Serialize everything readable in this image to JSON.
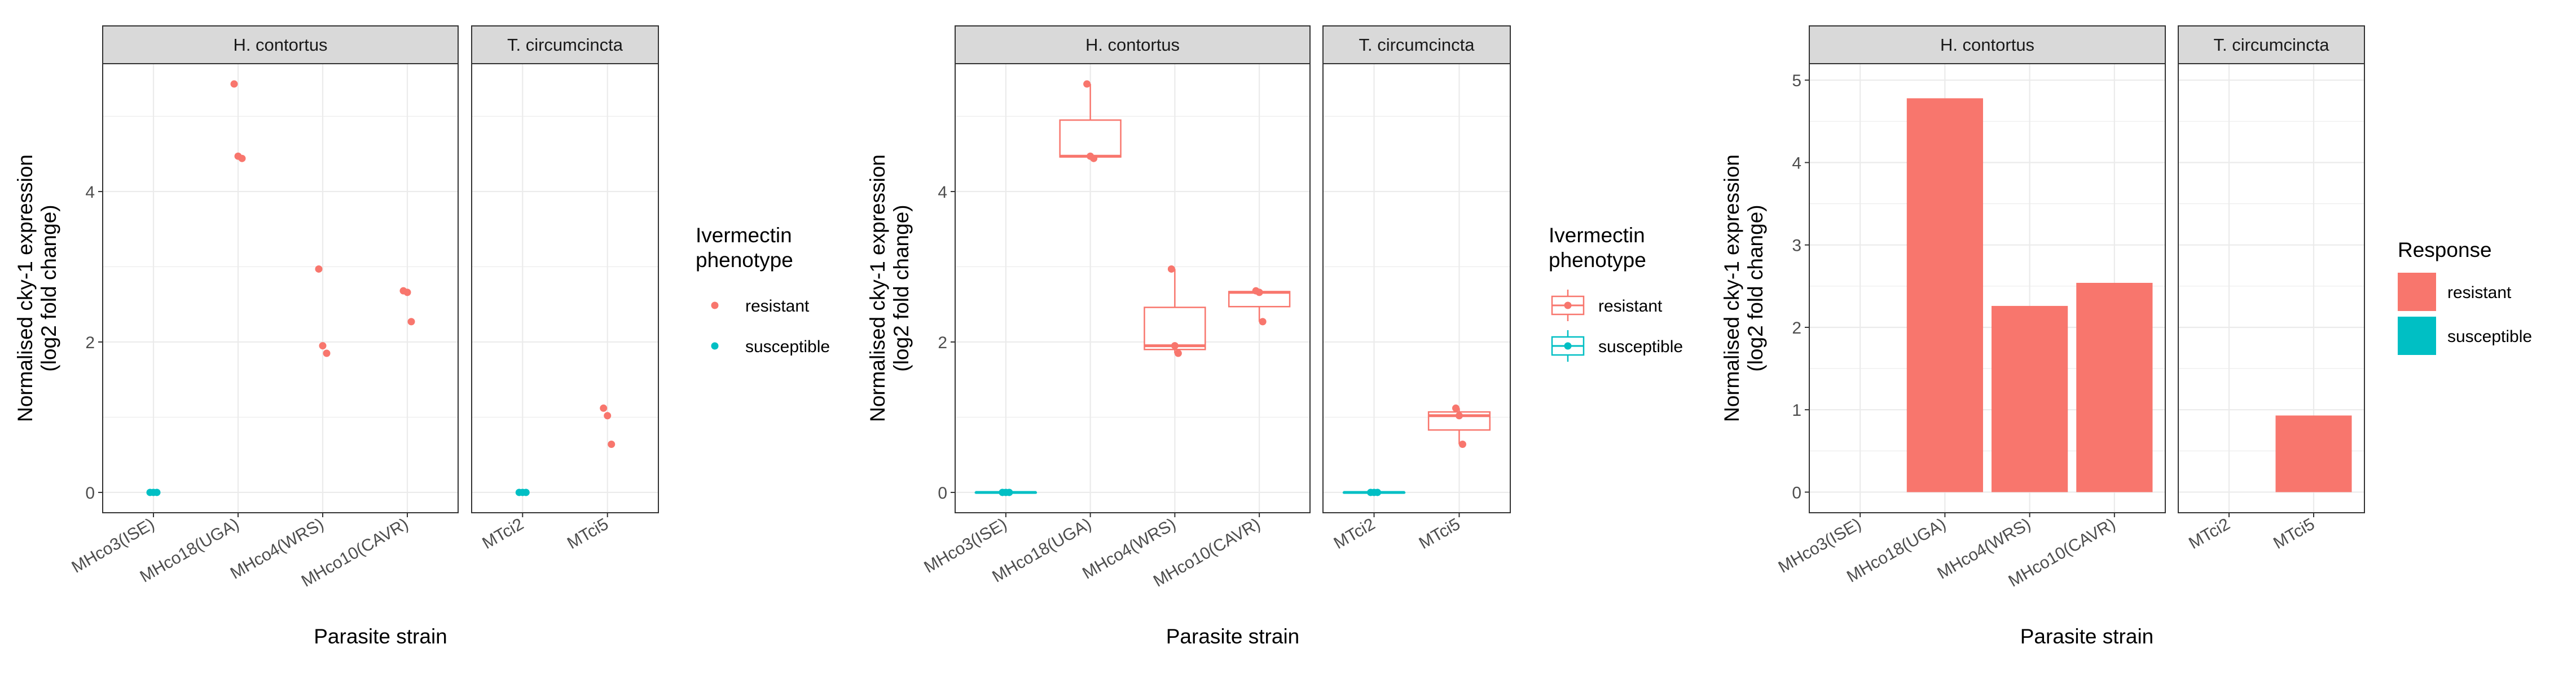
{
  "colors": {
    "resistant": "#F8766D",
    "susceptible": "#00BFC4",
    "strip_fill": "#D9D9D9",
    "grid": "#EBEBEB",
    "text": "#000000",
    "tick_text": "#4D4D4D"
  },
  "chart_data": [
    {
      "type": "scatter",
      "facets": [
        "H. contortus",
        "T. circumcincta"
      ],
      "xlabel": "Parasite strain",
      "ylabel_line1": "Normalised cky-1 expression",
      "ylabel_line2": "(log2 fold change)",
      "ylim": [
        -0.27,
        5.7
      ],
      "yticks": [
        0,
        2,
        4
      ],
      "grid": true,
      "legend": {
        "title_line1": "Ivermectin",
        "title_line2": "phenotype",
        "entries": [
          "resistant",
          "susceptible"
        ],
        "position": "right",
        "key_style": "point"
      },
      "panels": [
        {
          "facet": "H. contortus",
          "categories": [
            "MHco3(ISE)",
            "MHco18(UGA)",
            "MHco4(WRS)",
            "MHco10(CAVR)"
          ],
          "points": [
            {
              "x": "MHco3(ISE)",
              "y": 0,
              "group": "susceptible"
            },
            {
              "x": "MHco3(ISE)",
              "y": 0,
              "group": "susceptible"
            },
            {
              "x": "MHco3(ISE)",
              "y": 0,
              "group": "susceptible"
            },
            {
              "x": "MHco18(UGA)",
              "y": 5.43,
              "group": "resistant"
            },
            {
              "x": "MHco18(UGA)",
              "y": 4.47,
              "group": "resistant"
            },
            {
              "x": "MHco18(UGA)",
              "y": 4.44,
              "group": "resistant"
            },
            {
              "x": "MHco4(WRS)",
              "y": 2.97,
              "group": "resistant"
            },
            {
              "x": "MHco4(WRS)",
              "y": 1.95,
              "group": "resistant"
            },
            {
              "x": "MHco4(WRS)",
              "y": 1.85,
              "group": "resistant"
            },
            {
              "x": "MHco10(CAVR)",
              "y": 2.68,
              "group": "resistant"
            },
            {
              "x": "MHco10(CAVR)",
              "y": 2.66,
              "group": "resistant"
            },
            {
              "x": "MHco10(CAVR)",
              "y": 2.27,
              "group": "resistant"
            }
          ]
        },
        {
          "facet": "T. circumcincta",
          "categories": [
            "MTci2",
            "MTci5"
          ],
          "points": [
            {
              "x": "MTci2",
              "y": 0,
              "group": "susceptible"
            },
            {
              "x": "MTci2",
              "y": 0,
              "group": "susceptible"
            },
            {
              "x": "MTci2",
              "y": 0,
              "group": "susceptible"
            },
            {
              "x": "MTci5",
              "y": 1.12,
              "group": "resistant"
            },
            {
              "x": "MTci5",
              "y": 1.02,
              "group": "resistant"
            },
            {
              "x": "MTci5",
              "y": 0.64,
              "group": "resistant"
            }
          ]
        }
      ]
    },
    {
      "type": "boxplot",
      "facets": [
        "H. contortus",
        "T. circumcincta"
      ],
      "xlabel": "Parasite strain",
      "ylabel_line1": "Normalised cky-1 expression",
      "ylabel_line2": "(log2 fold change)",
      "ylim": [
        -0.27,
        5.7
      ],
      "yticks": [
        0,
        2,
        4
      ],
      "grid": true,
      "legend": {
        "title_line1": "Ivermectin",
        "title_line2": "phenotype",
        "entries": [
          "resistant",
          "susceptible"
        ],
        "position": "right",
        "key_style": "boxplot"
      },
      "panels": [
        {
          "facet": "H. contortus",
          "categories": [
            "MHco3(ISE)",
            "MHco18(UGA)",
            "MHco4(WRS)",
            "MHco10(CAVR)"
          ],
          "boxes": [
            {
              "x": "MHco3(ISE)",
              "group": "susceptible",
              "min": 0,
              "q1": 0,
              "median": 0,
              "q3": 0,
              "max": 0,
              "points": [
                0,
                0,
                0
              ]
            },
            {
              "x": "MHco18(UGA)",
              "group": "resistant",
              "min": 4.44,
              "q1": 4.46,
              "median": 4.47,
              "q3": 4.95,
              "max": 5.43,
              "points": [
                5.43,
                4.47,
                4.44
              ]
            },
            {
              "x": "MHco4(WRS)",
              "group": "resistant",
              "min": 1.85,
              "q1": 1.9,
              "median": 1.95,
              "q3": 2.46,
              "max": 2.97,
              "points": [
                2.97,
                1.95,
                1.85
              ]
            },
            {
              "x": "MHco10(CAVR)",
              "group": "resistant",
              "min": 2.27,
              "q1": 2.47,
              "median": 2.66,
              "q3": 2.67,
              "max": 2.68,
              "points": [
                2.68,
                2.66,
                2.27
              ]
            }
          ]
        },
        {
          "facet": "T. circumcincta",
          "categories": [
            "MTci2",
            "MTci5"
          ],
          "boxes": [
            {
              "x": "MTci2",
              "group": "susceptible",
              "min": 0,
              "q1": 0,
              "median": 0,
              "q3": 0,
              "max": 0,
              "points": [
                0,
                0,
                0
              ]
            },
            {
              "x": "MTci5",
              "group": "resistant",
              "min": 0.64,
              "q1": 0.83,
              "median": 1.02,
              "q3": 1.07,
              "max": 1.12,
              "points": [
                1.12,
                1.02,
                0.64
              ]
            }
          ]
        }
      ]
    },
    {
      "type": "bar",
      "facets": [
        "H. contortus",
        "T. circumcincta"
      ],
      "xlabel": "Parasite strain",
      "ylabel_line1": "Normalised cky-1 expression",
      "ylabel_line2": "(log2 fold change)",
      "ylim": [
        -0.25,
        5.2
      ],
      "yticks": [
        0,
        1,
        2,
        3,
        4,
        5
      ],
      "grid": true,
      "legend": {
        "title_line1": "Response",
        "title_line2": "",
        "entries": [
          "resistant",
          "susceptible"
        ],
        "position": "right",
        "key_style": "fill"
      },
      "panels": [
        {
          "facet": "H. contortus",
          "categories": [
            "MHco3(ISE)",
            "MHco18(UGA)",
            "MHco4(WRS)",
            "MHco10(CAVR)"
          ],
          "bars": [
            {
              "x": "MHco3(ISE)",
              "value": 0,
              "group": "susceptible"
            },
            {
              "x": "MHco18(UGA)",
              "value": 4.78,
              "group": "resistant"
            },
            {
              "x": "MHco4(WRS)",
              "value": 2.26,
              "group": "resistant"
            },
            {
              "x": "MHco10(CAVR)",
              "value": 2.54,
              "group": "resistant"
            }
          ]
        },
        {
          "facet": "T. circumcincta",
          "categories": [
            "MTci2",
            "MTci5"
          ],
          "bars": [
            {
              "x": "MTci2",
              "value": 0,
              "group": "susceptible"
            },
            {
              "x": "MTci5",
              "value": 0.93,
              "group": "resistant"
            }
          ]
        }
      ]
    }
  ]
}
